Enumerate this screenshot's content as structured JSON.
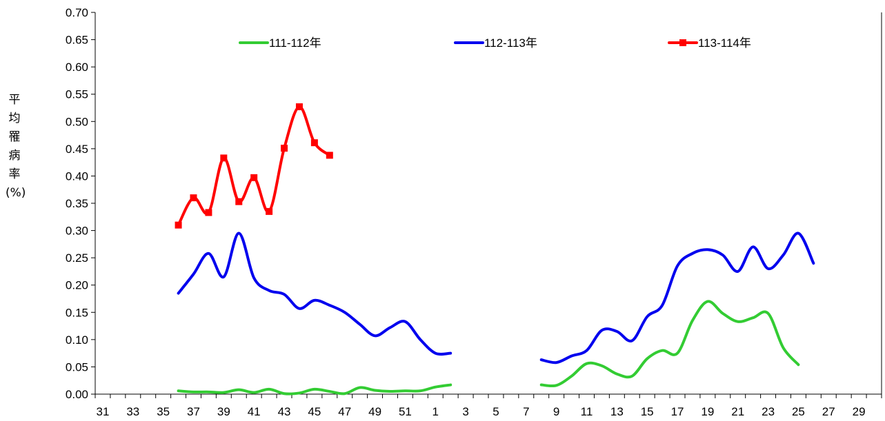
{
  "chart_data": {
    "type": "line",
    "title": "",
    "xlabel": "",
    "ylabel": "平均罹病率(%)",
    "ylim": [
      0,
      0.7
    ],
    "ytick_step": 0.05,
    "grid": false,
    "legend_position": "top",
    "categories": [
      "31",
      "32",
      "33",
      "34",
      "35",
      "36",
      "37",
      "38",
      "39",
      "40",
      "41",
      "42",
      "43",
      "44",
      "45",
      "46",
      "47",
      "48",
      "49",
      "50",
      "51",
      "52",
      "1",
      "2",
      "3",
      "4",
      "5",
      "6",
      "7",
      "8",
      "9",
      "10",
      "11",
      "12",
      "13",
      "14",
      "15",
      "16",
      "17",
      "18",
      "19",
      "20",
      "21",
      "22",
      "23",
      "24",
      "25",
      "26",
      "27",
      "28",
      "29",
      "30"
    ],
    "series": [
      {
        "name": "111-112年",
        "color": "#33cc33",
        "marker": "none",
        "values": [
          null,
          null,
          null,
          null,
          null,
          0.006,
          0.004,
          0.004,
          0.003,
          0.008,
          0.003,
          0.009,
          0.001,
          0.002,
          0.009,
          0.005,
          0.001,
          0.012,
          0.007,
          0.005,
          0.006,
          0.006,
          0.013,
          0.017,
          null,
          null,
          null,
          null,
          null,
          0.017,
          0.016,
          0.033,
          0.056,
          0.052,
          0.037,
          0.033,
          0.065,
          0.08,
          0.075,
          0.135,
          0.17,
          0.148,
          0.133,
          0.14,
          0.148,
          0.085,
          0.054,
          null,
          null,
          null,
          null,
          null
        ]
      },
      {
        "name": "112-113年",
        "color": "#0000ee",
        "marker": "none",
        "values": [
          null,
          null,
          null,
          null,
          null,
          0.185,
          0.22,
          0.258,
          0.215,
          0.295,
          0.213,
          0.19,
          0.183,
          0.157,
          0.172,
          0.163,
          0.15,
          0.128,
          0.107,
          0.122,
          0.133,
          0.1,
          0.075,
          0.075,
          null,
          null,
          null,
          null,
          null,
          0.063,
          0.058,
          0.07,
          0.08,
          0.117,
          0.115,
          0.098,
          0.142,
          0.163,
          0.235,
          0.258,
          0.265,
          0.255,
          0.225,
          0.27,
          0.23,
          0.255,
          0.295,
          0.24,
          null,
          null,
          null,
          null
        ]
      },
      {
        "name": "113-114年",
        "color": "#ff0000",
        "marker": "square",
        "values": [
          null,
          null,
          null,
          null,
          null,
          0.31,
          0.36,
          0.333,
          0.433,
          0.353,
          0.397,
          0.335,
          0.451,
          0.527,
          0.461,
          0.438,
          null,
          null,
          null,
          null,
          null,
          null,
          null,
          null,
          null,
          null,
          null,
          null,
          null,
          null,
          null,
          null,
          null,
          null,
          null,
          null,
          null,
          null,
          null,
          null,
          null,
          null,
          null,
          null,
          null,
          null,
          null,
          null,
          null,
          null,
          null,
          null
        ]
      }
    ]
  }
}
